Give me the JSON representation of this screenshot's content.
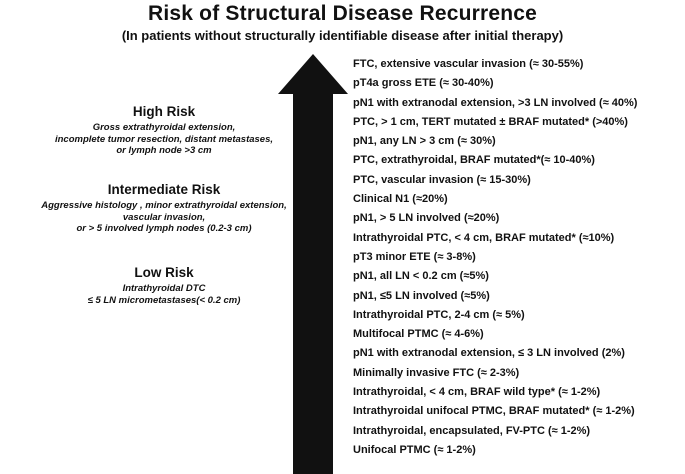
{
  "title": "Risk of Structural Disease Recurrence",
  "subtitle": "(In patients without structurally identifiable disease after initial therapy)",
  "risk_groups": {
    "high": {
      "heading": "High Risk",
      "lines": [
        "Gross extrathyroidal extension,",
        "incomplete tumor resection, distant metastases,",
        "or lymph node >3 cm"
      ]
    },
    "intermediate": {
      "heading": "Intermediate Risk",
      "lines": [
        "Aggressive histology , minor extrathyroidal extension,",
        "vascular invasion,",
        "or > 5 involved lymph nodes (0.2-3 cm)"
      ]
    },
    "low": {
      "heading": "Low Risk",
      "lines": [
        "Intrathyroidal DTC",
        "≤ 5 LN micrometastases(< 0.2 cm)"
      ]
    }
  },
  "arrow": {
    "color": "#111111"
  },
  "items": [
    "FTC, extensive vascular invasion (≈ 30-55%)",
    "pT4a gross ETE (≈ 30-40%)",
    "pN1 with extranodal extension, >3 LN involved (≈ 40%)",
    "PTC, > 1 cm, TERT mutated ± BRAF mutated* (>40%)",
    "pN1, any LN > 3 cm (≈ 30%)",
    "PTC, extrathyroidal, BRAF mutated*(≈ 10-40%)",
    "PTC, vascular invasion (≈ 15-30%)",
    "Clinical N1 (≈20%)",
    "pN1, > 5 LN involved (≈20%)",
    "Intrathyroidal PTC, < 4 cm, BRAF mutated* (≈10%)",
    "pT3 minor ETE (≈ 3-8%)",
    "pN1, all LN < 0.2 cm (≈5%)",
    "pN1, ≤5 LN involved (≈5%)",
    "Intrathyroidal PTC, 2-4 cm (≈ 5%)",
    "Multifocal PTMC (≈ 4-6%)",
    "pN1 with extranodal extension, ≤ 3 LN involved (2%)",
    "Minimally invasive FTC (≈ 2-3%)",
    "Intrathyroidal, < 4 cm, BRAF wild type* (≈ 1-2%)",
    "Intrathyroidal unifocal PTMC, BRAF mutated* (≈ 1-2%)",
    "Intrathyroidal, encapsulated, FV-PTC (≈ 1-2%)",
    "Unifocal PTMC (≈ 1-2%)"
  ]
}
